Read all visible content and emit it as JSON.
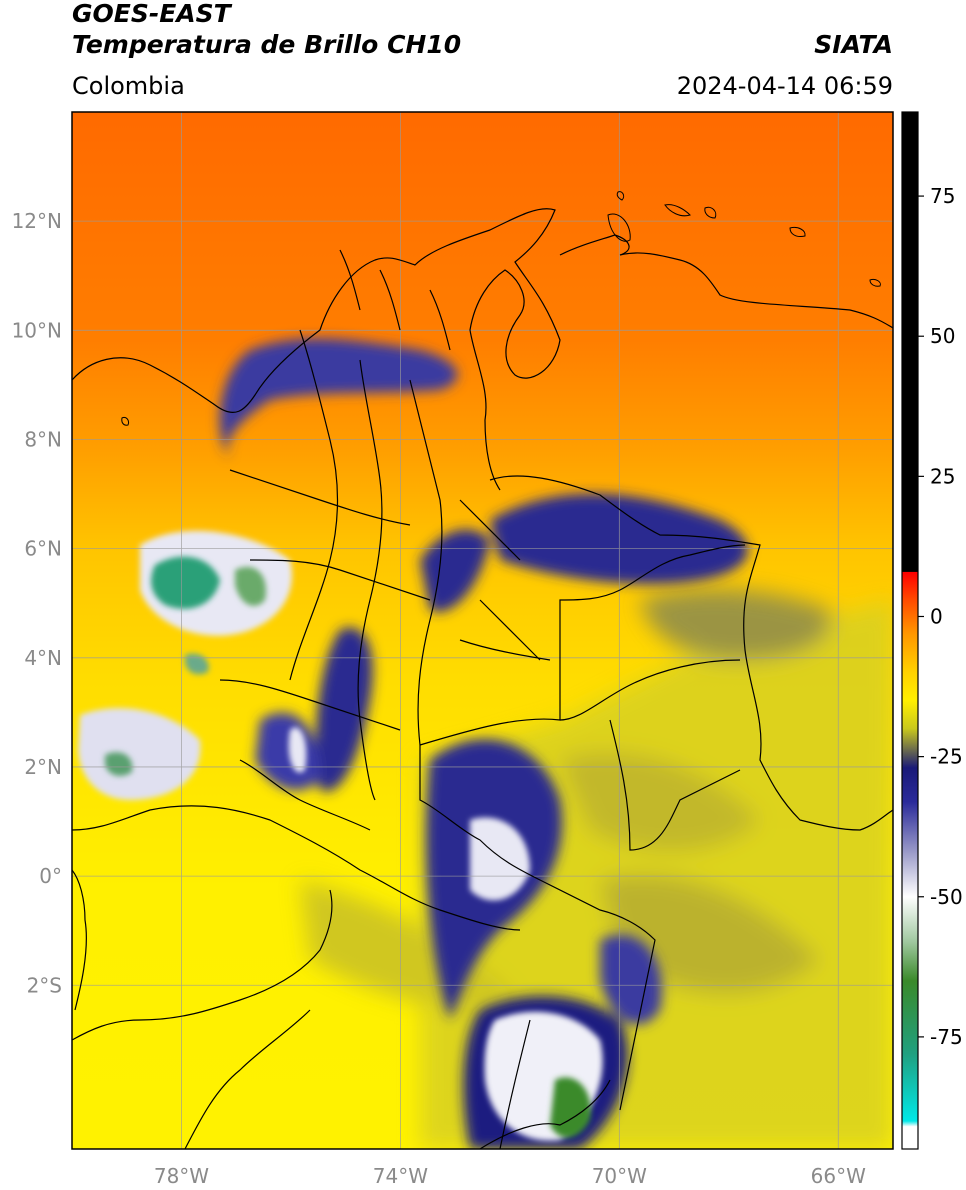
{
  "header": {
    "satellite": "GOES-EAST",
    "product": "Temperatura de Brillo CH10",
    "agency": "SIATA",
    "region": "Colombia",
    "datetime": "2024-04-14 06:59"
  },
  "map_axes": {
    "lon_range": [
      -80,
      -65
    ],
    "lat_range": [
      -5,
      14
    ],
    "lon_ticks": [
      {
        "value": -78,
        "label": "78°W"
      },
      {
        "value": -74,
        "label": "74°W"
      },
      {
        "value": -70,
        "label": "70°W"
      },
      {
        "value": -66,
        "label": "66°W"
      }
    ],
    "lat_ticks": [
      {
        "value": 12,
        "label": "12°N"
      },
      {
        "value": 10,
        "label": "10°N"
      },
      {
        "value": 8,
        "label": "8°N"
      },
      {
        "value": 6,
        "label": "6°N"
      },
      {
        "value": 4,
        "label": "4°N"
      },
      {
        "value": 2,
        "label": "2°N"
      },
      {
        "value": 0,
        "label": "0°"
      },
      {
        "value": -2,
        "label": "2°S"
      }
    ]
  },
  "colorbar": {
    "range": [
      -95,
      90
    ],
    "ticks": [
      {
        "value": 75,
        "label": "75"
      },
      {
        "value": 50,
        "label": "50"
      },
      {
        "value": 25,
        "label": "25"
      },
      {
        "value": 0,
        "label": "0"
      },
      {
        "value": -25,
        "label": "-25"
      },
      {
        "value": -50,
        "label": "-50"
      },
      {
        "value": -75,
        "label": "-75"
      }
    ],
    "stops": [
      {
        "value": 90,
        "color": "#000000"
      },
      {
        "value": 8,
        "color": "#000000"
      },
      {
        "value": 7.9,
        "color": "#ff0000"
      },
      {
        "value": 3,
        "color": "#ff4a00"
      },
      {
        "value": -3,
        "color": "#ff9600"
      },
      {
        "value": -10,
        "color": "#ffd200"
      },
      {
        "value": -15,
        "color": "#ffef00"
      },
      {
        "value": -20,
        "color": "#c9c81c"
      },
      {
        "value": -24,
        "color": "#666650"
      },
      {
        "value": -27,
        "color": "#1a1a78"
      },
      {
        "value": -33,
        "color": "#2a2a9a"
      },
      {
        "value": -42,
        "color": "#9a9ac8"
      },
      {
        "value": -50,
        "color": "#ffffff"
      },
      {
        "value": -58,
        "color": "#a0c8a0"
      },
      {
        "value": -65,
        "color": "#3a8a2a"
      },
      {
        "value": -78,
        "color": "#20a080"
      },
      {
        "value": -90,
        "color": "#00e8e8"
      },
      {
        "value": -91,
        "color": "#ffffff"
      },
      {
        "value": -95,
        "color": "#ffffff"
      }
    ]
  },
  "colors": {
    "warm_sea": "#ff7a00",
    "mid": "#ffcf00",
    "land": "#ffee00",
    "cold_gray": "#8a8a3a",
    "cloud_blue": "#1c1c80",
    "cloud_white": "#f0f0f8",
    "core_green": "#2a9a6a"
  }
}
